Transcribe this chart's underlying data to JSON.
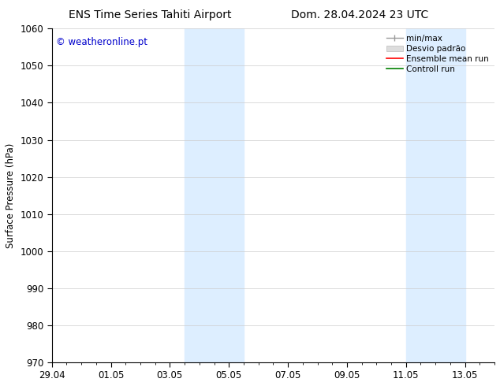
{
  "title_left": "ENS Time Series Tahiti Airport",
  "title_right": "Dom. 28.04.2024 23 UTC",
  "ylabel": "Surface Pressure (hPa)",
  "ylim": [
    970,
    1060
  ],
  "yticks": [
    970,
    980,
    990,
    1000,
    1010,
    1020,
    1030,
    1040,
    1050,
    1060
  ],
  "xtick_labels": [
    "29.04",
    "01.05",
    "03.05",
    "05.05",
    "07.05",
    "09.05",
    "11.05",
    "13.05"
  ],
  "shaded_color": "#ddeeff",
  "watermark_text": "© weatheronline.pt",
  "watermark_color": "#0000cc",
  "bg_color": "#ffffff",
  "grid_color": "#cccccc",
  "tick_label_fontsize": 8.5,
  "title_fontsize": 10,
  "ylabel_fontsize": 8.5,
  "legend_fontsize": 7.5
}
